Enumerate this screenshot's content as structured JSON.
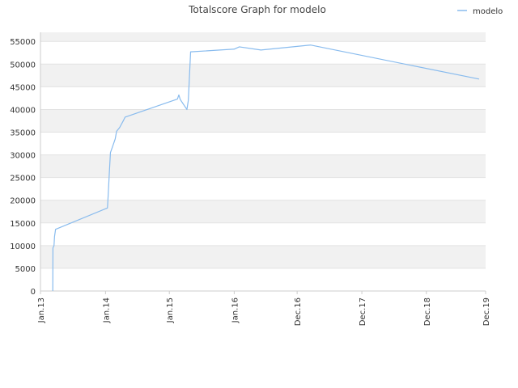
{
  "chart_data": {
    "type": "line",
    "title": "Totalscore Graph for modelo",
    "xlabel": "",
    "ylabel": "",
    "ylim": [
      0,
      57000
    ],
    "yticks": [
      0,
      5000,
      10000,
      15000,
      20000,
      25000,
      30000,
      35000,
      40000,
      45000,
      50000,
      55000
    ],
    "xlim": [
      "2012-12-25",
      "2019-12-01"
    ],
    "xticks": [
      {
        "label": "Jan.13",
        "date": "2012-12-25"
      },
      {
        "label": "Jan.14",
        "date": "2013-12-30"
      },
      {
        "label": "Jan.15",
        "date": "2014-12-28"
      },
      {
        "label": "Jan.16",
        "date": "2016-01-01"
      },
      {
        "label": "Dec.16",
        "date": "2016-12-24"
      },
      {
        "label": "Dec.17",
        "date": "2017-12-27"
      },
      {
        "label": "Dec.18",
        "date": "2018-12-29"
      },
      {
        "label": "Dec.19",
        "date": "2019-12-01"
      }
    ],
    "grid": true,
    "legend": "top-right",
    "series": [
      {
        "name": "modelo",
        "color": "#88bbee",
        "points": [
          {
            "x": "2013-03-05",
            "y": 0
          },
          {
            "x": "2013-03-06",
            "y": 9500
          },
          {
            "x": "2013-03-12",
            "y": 10000
          },
          {
            "x": "2013-03-15",
            "y": 12000
          },
          {
            "x": "2013-03-21",
            "y": 13600
          },
          {
            "x": "2014-01-10",
            "y": 18300
          },
          {
            "x": "2014-01-14",
            "y": 21000
          },
          {
            "x": "2014-01-20",
            "y": 25500
          },
          {
            "x": "2014-01-27",
            "y": 30500
          },
          {
            "x": "2014-02-08",
            "y": 31800
          },
          {
            "x": "2014-02-23",
            "y": 33500
          },
          {
            "x": "2014-03-03",
            "y": 35200
          },
          {
            "x": "2014-03-20",
            "y": 36000
          },
          {
            "x": "2014-04-10",
            "y": 37500
          },
          {
            "x": "2014-04-20",
            "y": 38300
          },
          {
            "x": "2015-02-12",
            "y": 42300
          },
          {
            "x": "2015-02-20",
            "y": 43200
          },
          {
            "x": "2015-02-28",
            "y": 42200
          },
          {
            "x": "2015-04-07",
            "y": 40000
          },
          {
            "x": "2015-04-15",
            "y": 42000
          },
          {
            "x": "2015-04-28",
            "y": 52700
          },
          {
            "x": "2016-01-01",
            "y": 53300
          },
          {
            "x": "2016-01-30",
            "y": 53800
          },
          {
            "x": "2016-06-01",
            "y": 53100
          },
          {
            "x": "2017-03-10",
            "y": 54200
          },
          {
            "x": "2019-10-25",
            "y": 46700
          }
        ]
      }
    ]
  }
}
